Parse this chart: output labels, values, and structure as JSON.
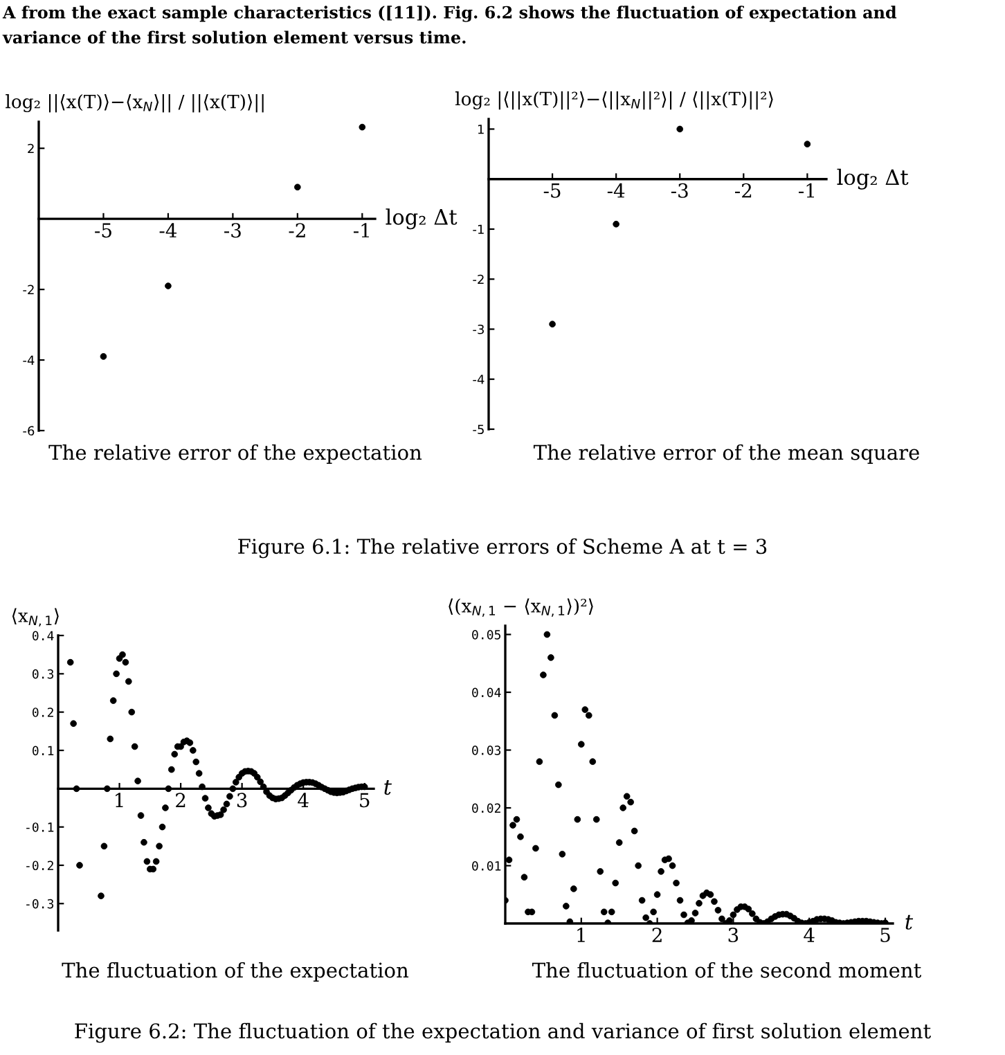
{
  "chart_data": [
    {
      "type": "scatter",
      "xlabel": "log₂ Δt",
      "ylabel": "log₂ ||⟨x(T)⟩−⟨x$_{N}$⟩|| / ||⟨x(T)⟩||",
      "xlim": [
        -6,
        -0.8
      ],
      "ylim": [
        -6,
        2.75
      ],
      "xticks": [
        -5,
        -4,
        -3,
        -2,
        -1
      ],
      "yticks": [
        -6,
        -4,
        -2,
        2
      ],
      "marker": "circle",
      "series": [
        {
          "color": "#000000",
          "x": [
            -5,
            -4,
            -2,
            -1
          ],
          "values": [
            -3.9,
            -1.9,
            0.9,
            2.6
          ]
        }
      ],
      "annotations": [
        "A from the exact sample characteristics ([11]). Fig. 6.2 shows the fluctuation of expectation and",
        "variance of the first solution element versus time.",
        "The relative error of the expectation"
      ]
    },
    {
      "type": "scatter",
      "xlabel": "log₂ Δt",
      "ylabel": "log₂ |⟨||x(T)||²⟩−⟨||x$_{N}$||²⟩| / ⟨||x(T)||²⟩",
      "xlim": [
        -6,
        -0.7
      ],
      "ylim": [
        -5,
        1.2
      ],
      "xticks": [
        -5,
        -4,
        -3,
        -2,
        -1
      ],
      "yticks": [
        -5,
        -4,
        -3,
        -2,
        -1,
        1
      ],
      "marker": "circle",
      "series": [
        {
          "color": "#000000",
          "x": [
            -5,
            -4,
            -3,
            -1
          ],
          "values": [
            -2.9,
            -0.9,
            1.0,
            0.7
          ]
        }
      ],
      "annotations": [
        "The relative error of the mean square",
        "Figure 6.1: The relative errors of Scheme A at t = 3"
      ]
    },
    {
      "type": "scatter",
      "xlabel": "t",
      "ylabel": "⟨x$_{N,1}$⟩",
      "xlim": [
        0,
        5.15
      ],
      "ylim": [
        -0.37,
        0.4
      ],
      "xticks": [
        1,
        2,
        3,
        4,
        5
      ],
      "yticks": [
        -0.3,
        -0.2,
        -0.1,
        0.1,
        0.2,
        0.3,
        0.4
      ],
      "marker": "circle",
      "series": [
        {
          "color": "#000000",
          "x": [
            0.2,
            0.25,
            0.3,
            0.35,
            0.7,
            0.75,
            0.8,
            0.85,
            0.9,
            0.95,
            1.0,
            1.05,
            1.1,
            1.15,
            1.2,
            1.25,
            1.3,
            1.35,
            1.4,
            1.45,
            1.5,
            1.55,
            1.6,
            1.65,
            1.7,
            1.75,
            1.8,
            1.85,
            1.9,
            1.95,
            2.0,
            2.05,
            2.1,
            2.15,
            2.2,
            2.25,
            2.3,
            2.35,
            2.4,
            2.45,
            2.5,
            2.55,
            2.6,
            2.65,
            2.7,
            2.75,
            2.8,
            2.85,
            2.9,
            2.95,
            3.0,
            3.05,
            3.1,
            3.15,
            3.2,
            3.25,
            3.3,
            3.35,
            3.4,
            3.45,
            3.5,
            3.55,
            3.6,
            3.65,
            3.7,
            3.75,
            3.8,
            3.85,
            3.9,
            3.95,
            4.0,
            4.05,
            4.1,
            4.15,
            4.2,
            4.25,
            4.3,
            4.35,
            4.4,
            4.45,
            4.5,
            4.55,
            4.6,
            4.65,
            4.7,
            4.75,
            4.8,
            4.85,
            4.9,
            4.95,
            5.0
          ],
          "values": [
            0.33,
            0.17,
            0.0,
            -0.2,
            -0.28,
            -0.15,
            0.0,
            0.13,
            0.23,
            0.3,
            0.34,
            0.35,
            0.33,
            0.28,
            0.2,
            0.11,
            0.02,
            -0.07,
            -0.14,
            -0.19,
            -0.21,
            -0.21,
            -0.19,
            -0.15,
            -0.1,
            -0.05,
            0.0,
            0.05,
            0.09,
            0.11,
            0.11,
            0.122,
            0.125,
            0.12,
            0.1,
            0.07,
            0.04,
            0.005,
            -0.025,
            -0.05,
            -0.065,
            -0.072,
            -0.07,
            -0.068,
            -0.055,
            -0.04,
            -0.02,
            0.0,
            0.017,
            0.03,
            0.04,
            0.045,
            0.046,
            0.045,
            0.04,
            0.03,
            0.018,
            0.005,
            -0.008,
            -0.018,
            -0.024,
            -0.027,
            -0.026,
            -0.024,
            -0.018,
            -0.011,
            -0.004,
            0.003,
            0.009,
            0.013,
            0.016,
            0.017,
            0.017,
            0.016,
            0.013,
            0.009,
            0.004,
            0.0,
            -0.004,
            -0.008,
            -0.01,
            -0.011,
            -0.01,
            -0.009,
            -0.006,
            -0.003,
            0.0,
            0.002,
            0.004,
            0.005,
            0.005
          ]
        }
      ],
      "annotations": [
        "The fluctuation of the expectation"
      ]
    },
    {
      "type": "scatter",
      "xlabel": "t",
      "ylabel": "⟨(x$_{N,1}$ − ⟨x$_{N,1}$⟩)²⟩",
      "xlim": [
        0,
        5.1
      ],
      "ylim": [
        0,
        0.0515
      ],
      "xticks": [
        1,
        2,
        3,
        4,
        5
      ],
      "yticks": [
        0.01,
        0.02,
        0.03,
        0.04,
        0.05
      ],
      "marker": "circle",
      "series": [
        {
          "color": "#000000",
          "x": [
            0.0,
            0.05,
            0.1,
            0.15,
            0.2,
            0.25,
            0.3,
            0.35,
            0.4,
            0.45,
            0.5,
            0.55,
            0.6,
            0.65,
            0.7,
            0.75,
            0.8,
            0.85,
            0.9,
            0.95,
            1.0,
            1.05,
            1.1,
            1.15,
            1.2,
            1.25,
            1.3,
            1.35,
            1.4,
            1.45,
            1.5,
            1.55,
            1.6,
            1.65,
            1.7,
            1.75,
            1.8,
            1.85,
            1.9,
            1.95,
            2.0,
            2.05,
            2.1,
            2.15,
            2.2,
            2.25,
            2.3,
            2.35,
            2.4,
            2.45,
            2.5,
            2.55,
            2.6,
            2.65,
            2.7,
            2.75,
            2.8,
            2.85,
            2.9,
            2.95,
            3.0,
            3.05,
            3.1,
            3.15,
            3.2,
            3.25,
            3.3,
            3.35,
            3.4,
            3.45,
            3.5,
            3.55,
            3.6,
            3.65,
            3.7,
            3.75,
            3.8,
            3.85,
            3.9,
            3.95,
            4.0,
            4.05,
            4.1,
            4.15,
            4.2,
            4.25,
            4.3,
            4.35,
            4.4,
            4.45,
            4.5,
            4.55,
            4.6,
            4.65,
            4.7,
            4.75,
            4.8,
            4.85,
            4.9,
            4.95,
            5.0
          ],
          "values": [
            0.004,
            0.011,
            0.017,
            0.018,
            0.015,
            0.008,
            0.002,
            0.002,
            0.013,
            0.028,
            0.043,
            0.05,
            0.046,
            0.036,
            0.024,
            0.012,
            0.003,
            0.0003,
            0.006,
            0.018,
            0.031,
            0.037,
            0.036,
            0.028,
            0.018,
            0.009,
            0.002,
            0.0001,
            0.002,
            0.007,
            0.014,
            0.02,
            0.022,
            0.021,
            0.016,
            0.01,
            0.004,
            0.001,
            0.0,
            0.002,
            0.005,
            0.009,
            0.011,
            0.0112,
            0.01,
            0.007,
            0.004,
            0.0015,
            0.0001,
            0.0005,
            0.0018,
            0.0035,
            0.0048,
            0.0053,
            0.005,
            0.0038,
            0.0023,
            0.0008,
            0.0,
            0.0005,
            0.0015,
            0.0024,
            0.0029,
            0.0029,
            0.0025,
            0.0017,
            0.0008,
            0.0002,
            0.0,
            0.0003,
            0.0008,
            0.0012,
            0.0015,
            0.0016,
            0.0016,
            0.0013,
            0.0009,
            0.0004,
            0.0001,
            0.0,
            0.0002,
            0.0004,
            0.0007,
            0.0008,
            0.0008,
            0.0007,
            0.0005,
            0.0002,
            0.0001,
            0.0,
            0.0001,
            0.0002,
            0.0003,
            0.0004,
            0.0004,
            0.0004,
            0.0003,
            0.0002,
            0.0001,
            0.0,
            0.0001
          ]
        }
      ],
      "annotations": [
        "The fluctuation of the second moment",
        "Figure 6.2: The fluctuation of the expectation and variance of first solution element"
      ]
    }
  ]
}
